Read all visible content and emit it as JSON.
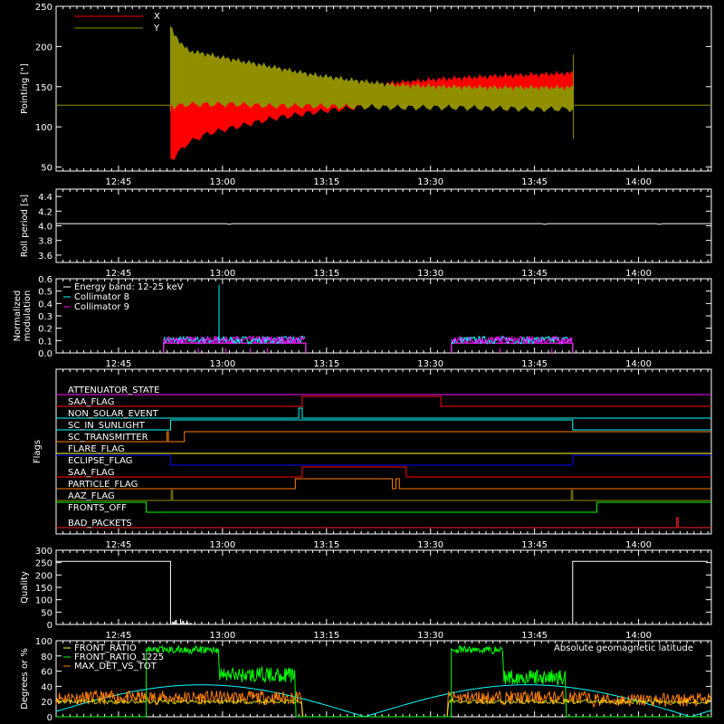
{
  "colors": {
    "x": "#ff0000",
    "y": "#8f8f00",
    "white": "#ffffff",
    "cyan": "#00ffff",
    "magenta": "#ff00ff",
    "red": "#ff0000",
    "green": "#00ff00",
    "orange": "#ff8000",
    "yellow": "#ffff00",
    "blue": "#0000ff",
    "olive": "#8f8f00",
    "flagred": "#ff2020"
  },
  "time_axis": {
    "start_min": 765,
    "end_min": 850,
    "ticks": [
      {
        "min": 765,
        "label": "12:45"
      },
      {
        "min": 780,
        "label": "13:00"
      },
      {
        "min": 795,
        "label": "13:15"
      },
      {
        "min": 810,
        "label": "13:30"
      },
      {
        "min": 825,
        "label": "13:45"
      },
      {
        "min": 840,
        "label": "14:00"
      }
    ]
  },
  "chart_data": [
    {
      "id": "pointing",
      "type": "area",
      "ylabel": "Pointing [\"]",
      "ylim": [
        45,
        250
      ],
      "yticks": [
        {
          "v": 50,
          "l": "50"
        },
        {
          "v": 100,
          "l": "100"
        },
        {
          "v": 150,
          "l": "150"
        },
        {
          "v": 200,
          "l": "200"
        },
        {
          "v": 250,
          "l": "250"
        }
      ],
      "baseline": 127,
      "series": [
        {
          "name": "X",
          "color_key": "x",
          "t": [
            772.5,
            773,
            775,
            778,
            782,
            787,
            793,
            799,
            805,
            812,
            819,
            825,
            830.6
          ],
          "lower": [
            60,
            62,
            80,
            92,
            100,
            110,
            118,
            124,
            127,
            129,
            130,
            131,
            132
          ],
          "upper": [
            160,
            155,
            140,
            138,
            140,
            142,
            145,
            150,
            155,
            160,
            163,
            165,
            167
          ]
        },
        {
          "name": "Y",
          "color_key": "y",
          "t": [
            772.5,
            773,
            775,
            778,
            782,
            787,
            793,
            799,
            805,
            812,
            819,
            825,
            830.6
          ],
          "lower": [
            130,
            125,
            128,
            128,
            128,
            126,
            126,
            125,
            124,
            124,
            123,
            122,
            122
          ],
          "upper": [
            225,
            215,
            195,
            190,
            183,
            175,
            165,
            158,
            152,
            150,
            149,
            149,
            149
          ]
        }
      ]
    },
    {
      "id": "roll",
      "type": "line",
      "ylabel": "Roll period [s]",
      "ylim": [
        3.5,
        4.5
      ],
      "yticks": [
        {
          "v": 3.6,
          "l": "3.6"
        },
        {
          "v": 3.8,
          "l": "3.8"
        },
        {
          "v": 4.0,
          "l": "4.0"
        },
        {
          "v": 4.2,
          "l": "4.2"
        },
        {
          "v": 4.4,
          "l": "4.4"
        }
      ],
      "value": 4.03
    },
    {
      "id": "modulation",
      "type": "line",
      "ylabel": "Normalized modulation",
      "ylim": [
        0,
        0.6
      ],
      "yticks": [
        {
          "v": 0.0,
          "l": "0.0"
        },
        {
          "v": 0.1,
          "l": "0.1"
        },
        {
          "v": 0.2,
          "l": "0.2"
        },
        {
          "v": 0.3,
          "l": "0.3"
        },
        {
          "v": 0.4,
          "l": "0.4"
        },
        {
          "v": 0.5,
          "l": "0.5"
        },
        {
          "v": 0.6,
          "l": "0.6"
        }
      ],
      "legend": [
        "Energy band: 12-25 keV",
        "Collimator 8",
        "Collimator 9"
      ],
      "intervals": [
        [
          771.5,
          792
        ],
        [
          813,
          830.5
        ]
      ],
      "level": 0.08,
      "spike": {
        "t": 779.5,
        "v": 0.55
      }
    },
    {
      "id": "flags",
      "type": "line",
      "ylabel": "Flags",
      "flags": [
        {
          "name": "ATTENUATOR_STATE",
          "color_key": "magenta",
          "steps": []
        },
        {
          "name": "SAA_FLAG",
          "color_key": "red",
          "steps": [
            [
              791.5,
              1
            ],
            [
              811.5,
              0
            ]
          ]
        },
        {
          "name": "NON_SOLAR_EVENT",
          "color_key": "cyan",
          "steps": [
            [
              791,
              1
            ],
            [
              791.5,
              0
            ]
          ]
        },
        {
          "name": "SC_IN_SUNLIGHT",
          "color_key": "cyan",
          "steps": [
            [
              772.5,
              1
            ],
            [
              830.5,
              0
            ]
          ]
        },
        {
          "name": "SC_TRANSMITTER",
          "color_key": "orange",
          "steps": [
            [
              772,
              1
            ],
            [
              772.2,
              0
            ],
            [
              774.5,
              1
            ]
          ]
        },
        {
          "name": "FLARE_FLAG",
          "color_key": "yellow",
          "steps": []
        },
        {
          "name": "ECLIPSE_FLAG",
          "color_key": "blue",
          "steps": [
            [
              772.5,
              0
            ],
            [
              830.5,
              1
            ]
          ]
        },
        {
          "name": "SAA_FLAG",
          "color_key": "red",
          "steps": [
            [
              791.5,
              1
            ],
            [
              806.5,
              0
            ]
          ]
        },
        {
          "name": "PARTICLE_FLAG",
          "color_key": "orange",
          "steps": [
            [
              790.5,
              1
            ],
            [
              804.5,
              0
            ],
            [
              805,
              1
            ],
            [
              805.5,
              0
            ]
          ]
        },
        {
          "name": "AAZ_FLAG",
          "color_key": "olive",
          "steps": [
            [
              772.6,
              1
            ],
            [
              772.8,
              0
            ],
            [
              830.3,
              1
            ],
            [
              830.5,
              0
            ]
          ]
        },
        {
          "name": "FRONTS_OFF",
          "color_key": "green",
          "steps": [
            [
              769,
              0
            ],
            [
              834,
              1
            ]
          ]
        },
        {
          "name": "BAD_PACKETS",
          "color_key": "flagred",
          "steps": [
            [
              845.5,
              1
            ],
            [
              845.7,
              0
            ]
          ]
        }
      ]
    },
    {
      "id": "quality",
      "type": "line",
      "ylabel": "Quality",
      "ylim": [
        0,
        300
      ],
      "yticks": [
        {
          "v": 0,
          "l": "0"
        },
        {
          "v": 50,
          "l": "50"
        },
        {
          "v": 100,
          "l": "100"
        },
        {
          "v": 150,
          "l": "150"
        },
        {
          "v": 200,
          "l": "200"
        },
        {
          "v": 250,
          "l": "250"
        },
        {
          "v": 300,
          "l": "300"
        }
      ],
      "t": [
        756,
        772.5,
        772.5,
        830.5,
        830.5,
        850
      ],
      "v": [
        255,
        255,
        0,
        0,
        255,
        255
      ]
    },
    {
      "id": "ratios",
      "type": "line",
      "ylabel": "Degrees or %",
      "ylim": [
        0,
        100
      ],
      "yticks": [
        {
          "v": 0,
          "l": "0"
        },
        {
          "v": 20,
          "l": "20"
        },
        {
          "v": 40,
          "l": "40"
        },
        {
          "v": 60,
          "l": "60"
        },
        {
          "v": 80,
          "l": "80"
        },
        {
          "v": 100,
          "l": "100"
        }
      ],
      "legend": [
        "FRONT_RATIO",
        "FRONT_RATIO_1225",
        "MAX_DET_VS_TOT"
      ],
      "annotation": "Absolute geomagnetic latitude"
    }
  ]
}
